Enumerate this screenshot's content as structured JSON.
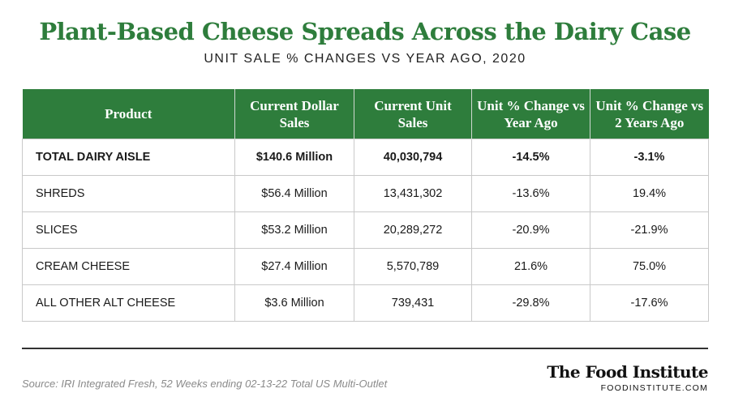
{
  "header": {
    "title": "Plant-Based Cheese Spreads Across the Dairy Case",
    "subtitle": "UNIT SALE % CHANGES VS YEAR AGO, 2020"
  },
  "table": {
    "columns": [
      "Product",
      "Current Dollar Sales",
      "Current Unit Sales",
      "Unit % Change vs Year Ago",
      "Unit % Change vs 2 Years Ago"
    ],
    "rows": [
      [
        "TOTAL DAIRY AISLE",
        "$140.6 Million",
        "40,030,794",
        "-14.5%",
        "-3.1%"
      ],
      [
        "SHREDS",
        "$56.4 Million",
        "13,431,302",
        "-13.6%",
        "19.4%"
      ],
      [
        "SLICES",
        "$53.2 Million",
        "20,289,272",
        "-20.9%",
        "-21.9%"
      ],
      [
        "CREAM CHEESE",
        "$27.4 Million",
        "5,570,789",
        "21.6%",
        "75.0%"
      ],
      [
        "ALL OTHER ALT CHEESE",
        "$3.6 Million",
        "739,431",
        "-29.8%",
        "-17.6%"
      ]
    ]
  },
  "footer": {
    "source": "Source: IRI Integrated Fresh, 52 Weeks ending 02-13-22 Total US Multi-Outlet",
    "brand_name": "The Food Institute",
    "brand_url": "FOODINSTITUTE.COM"
  },
  "colors": {
    "accent_green": "#2e7d3c",
    "border_gray": "#c9c9c9"
  }
}
